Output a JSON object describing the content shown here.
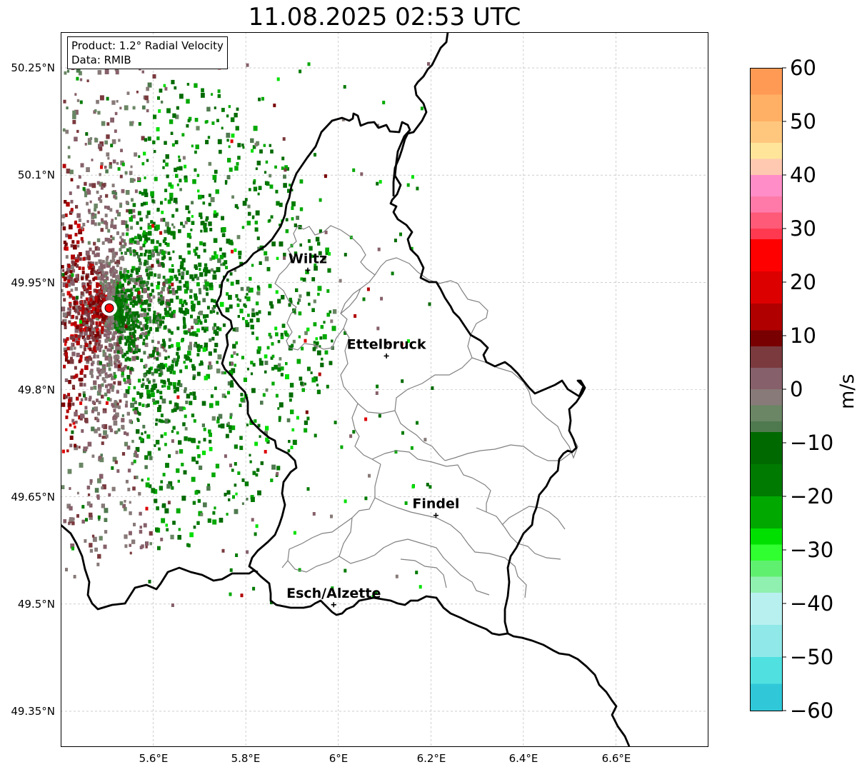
{
  "title": "11.08.2025 02:53 UTC",
  "info_box": {
    "product": "Product: 1.2° Radial Velocity",
    "data": "Data: RMIB"
  },
  "lat_labels": [
    "50.25°N",
    "50.1°N",
    "49.95°N",
    "49.8°N",
    "49.65°N",
    "49.5°N",
    "49.35°N"
  ],
  "lon_labels": [
    "5.6°E",
    "5.8°E",
    "6°E",
    "6.2°E",
    "6.4°E",
    "6.6°E"
  ],
  "map_extent": {
    "lon_min": 5.4,
    "lon_max": 6.8,
    "lat_min": 49.3,
    "lat_max": 50.3
  },
  "grid_lats": [
    50.25,
    50.1,
    49.95,
    49.8,
    49.65,
    49.5,
    49.35
  ],
  "grid_lons": [
    5.6,
    5.8,
    6.0,
    6.2,
    6.4,
    6.6
  ],
  "radar_site": {
    "lon": 5.505,
    "lat": 49.914
  },
  "cities": [
    {
      "name": "Wiltz",
      "lon": 5.934,
      "lat": 49.967
    },
    {
      "name": "Ettelbruck",
      "lon": 6.104,
      "lat": 49.847
    },
    {
      "name": "Findel",
      "lon": 6.211,
      "lat": 49.624
    },
    {
      "name": "Esch/Alzette",
      "lon": 5.99,
      "lat": 49.499
    }
  ],
  "colorbar": {
    "label": "m/s",
    "vmin": -60,
    "vmax": 60,
    "ticks": [
      "60",
      "50",
      "40",
      "30",
      "20",
      "10",
      "0",
      "−10",
      "−20",
      "−30",
      "−40",
      "−50",
      "−60"
    ],
    "tick_values": [
      60,
      50,
      40,
      30,
      20,
      10,
      0,
      -10,
      -20,
      -30,
      -40,
      -50,
      -60
    ],
    "stops": [
      {
        "v": 60,
        "c": "#ff9a55"
      },
      {
        "v": 55,
        "c": "#ffb064"
      },
      {
        "v": 50,
        "c": "#ffc77e"
      },
      {
        "v": 46,
        "c": "#ffe59a"
      },
      {
        "v": 43,
        "c": "#ffc8b0"
      },
      {
        "v": 40,
        "c": "#ff8ec8"
      },
      {
        "v": 36,
        "c": "#ff7aa8"
      },
      {
        "v": 33,
        "c": "#ff5a78"
      },
      {
        "v": 30,
        "c": "#ff3a50"
      },
      {
        "v": 28,
        "c": "#ff0000"
      },
      {
        "v": 22,
        "c": "#dd0000"
      },
      {
        "v": 16,
        "c": "#b00000"
      },
      {
        "v": 11,
        "c": "#780000"
      },
      {
        "v": 8,
        "c": "#7a3a3e"
      },
      {
        "v": 4,
        "c": "#86606a"
      },
      {
        "v": 0,
        "c": "#877a78"
      },
      {
        "v": -3,
        "c": "#6a8664"
      },
      {
        "v": -6,
        "c": "#4f7a4f"
      },
      {
        "v": -8,
        "c": "#006a00"
      },
      {
        "v": -14,
        "c": "#007a00"
      },
      {
        "v": -20,
        "c": "#00a800"
      },
      {
        "v": -26,
        "c": "#00e000"
      },
      {
        "v": -29,
        "c": "#30ff30"
      },
      {
        "v": -32,
        "c": "#60f070"
      },
      {
        "v": -35,
        "c": "#90f0b0"
      },
      {
        "v": -38,
        "c": "#b8f0f0"
      },
      {
        "v": -44,
        "c": "#90e8e8"
      },
      {
        "v": -50,
        "c": "#50e0e0"
      },
      {
        "v": -55,
        "c": "#30c8d8"
      },
      {
        "v": -60,
        "c": "#1e80c8"
      }
    ]
  },
  "colors": {
    "border": "#000000",
    "commune": "#808080",
    "grid": "#b0b0b0",
    "radar_marker": "#ff0000"
  }
}
